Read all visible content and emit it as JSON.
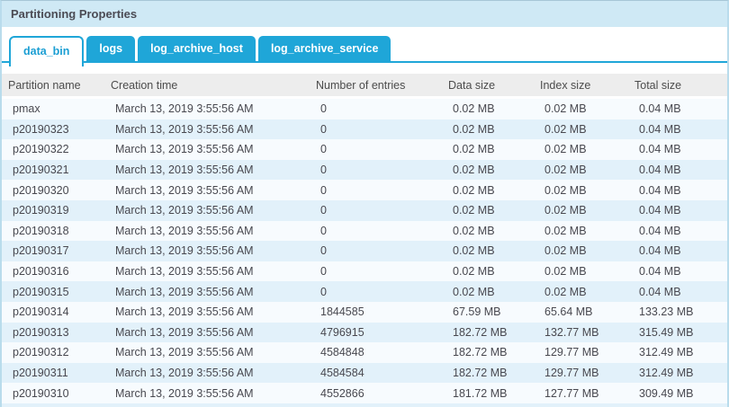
{
  "panel": {
    "title": "Partitioning Properties"
  },
  "tabs": [
    {
      "label": "data_bin",
      "active": true
    },
    {
      "label": "logs",
      "active": false
    },
    {
      "label": "log_archive_host",
      "active": false
    },
    {
      "label": "log_archive_service",
      "active": false
    }
  ],
  "table": {
    "columns": [
      "Partition name",
      "Creation time",
      "Number of entries",
      "Data size",
      "Index size",
      "Total size"
    ],
    "rows": [
      [
        "pmax",
        "March 13, 2019 3:55:56 AM",
        "0",
        "0.02 MB",
        "0.02 MB",
        "0.04 MB"
      ],
      [
        "p20190323",
        "March 13, 2019 3:55:56 AM",
        "0",
        "0.02 MB",
        "0.02 MB",
        "0.04 MB"
      ],
      [
        "p20190322",
        "March 13, 2019 3:55:56 AM",
        "0",
        "0.02 MB",
        "0.02 MB",
        "0.04 MB"
      ],
      [
        "p20190321",
        "March 13, 2019 3:55:56 AM",
        "0",
        "0.02 MB",
        "0.02 MB",
        "0.04 MB"
      ],
      [
        "p20190320",
        "March 13, 2019 3:55:56 AM",
        "0",
        "0.02 MB",
        "0.02 MB",
        "0.04 MB"
      ],
      [
        "p20190319",
        "March 13, 2019 3:55:56 AM",
        "0",
        "0.02 MB",
        "0.02 MB",
        "0.04 MB"
      ],
      [
        "p20190318",
        "March 13, 2019 3:55:56 AM",
        "0",
        "0.02 MB",
        "0.02 MB",
        "0.04 MB"
      ],
      [
        "p20190317",
        "March 13, 2019 3:55:56 AM",
        "0",
        "0.02 MB",
        "0.02 MB",
        "0.04 MB"
      ],
      [
        "p20190316",
        "March 13, 2019 3:55:56 AM",
        "0",
        "0.02 MB",
        "0.02 MB",
        "0.04 MB"
      ],
      [
        "p20190315",
        "March 13, 2019 3:55:56 AM",
        "0",
        "0.02 MB",
        "0.02 MB",
        "0.04 MB"
      ],
      [
        "p20190314",
        "March 13, 2019 3:55:56 AM",
        "1844585",
        "67.59 MB",
        "65.64 MB",
        "133.23 MB"
      ],
      [
        "p20190313",
        "March 13, 2019 3:55:56 AM",
        "4796915",
        "182.72 MB",
        "132.77 MB",
        "315.49 MB"
      ],
      [
        "p20190312",
        "March 13, 2019 3:55:56 AM",
        "4584848",
        "182.72 MB",
        "129.77 MB",
        "312.49 MB"
      ],
      [
        "p20190311",
        "March 13, 2019 3:55:56 AM",
        "4584584",
        "182.72 MB",
        "129.77 MB",
        "312.49 MB"
      ],
      [
        "p20190310",
        "March 13, 2019 3:55:56 AM",
        "4552866",
        "181.72 MB",
        "127.77 MB",
        "309.49 MB"
      ]
    ]
  },
  "colors": {
    "tab_blue": "#1fa6d8",
    "active_tab_text": "#1a9ed3",
    "titlebar_bg": "#cfe9f5",
    "title_text": "#4b4b54",
    "header_bg": "#ededed",
    "header_text": "#4c4c4c",
    "cell_text": "#48484f",
    "row_odd": "#f7fbfe",
    "row_even": "#e2f1fa",
    "outer_border": "#b9dcec",
    "outer_border_top": "#a6c6d6"
  },
  "cell_names": [
    "cell-partition-name",
    "cell-creation-time",
    "cell-number-of-entries",
    "cell-data-size",
    "cell-index-size",
    "cell-total-size"
  ]
}
